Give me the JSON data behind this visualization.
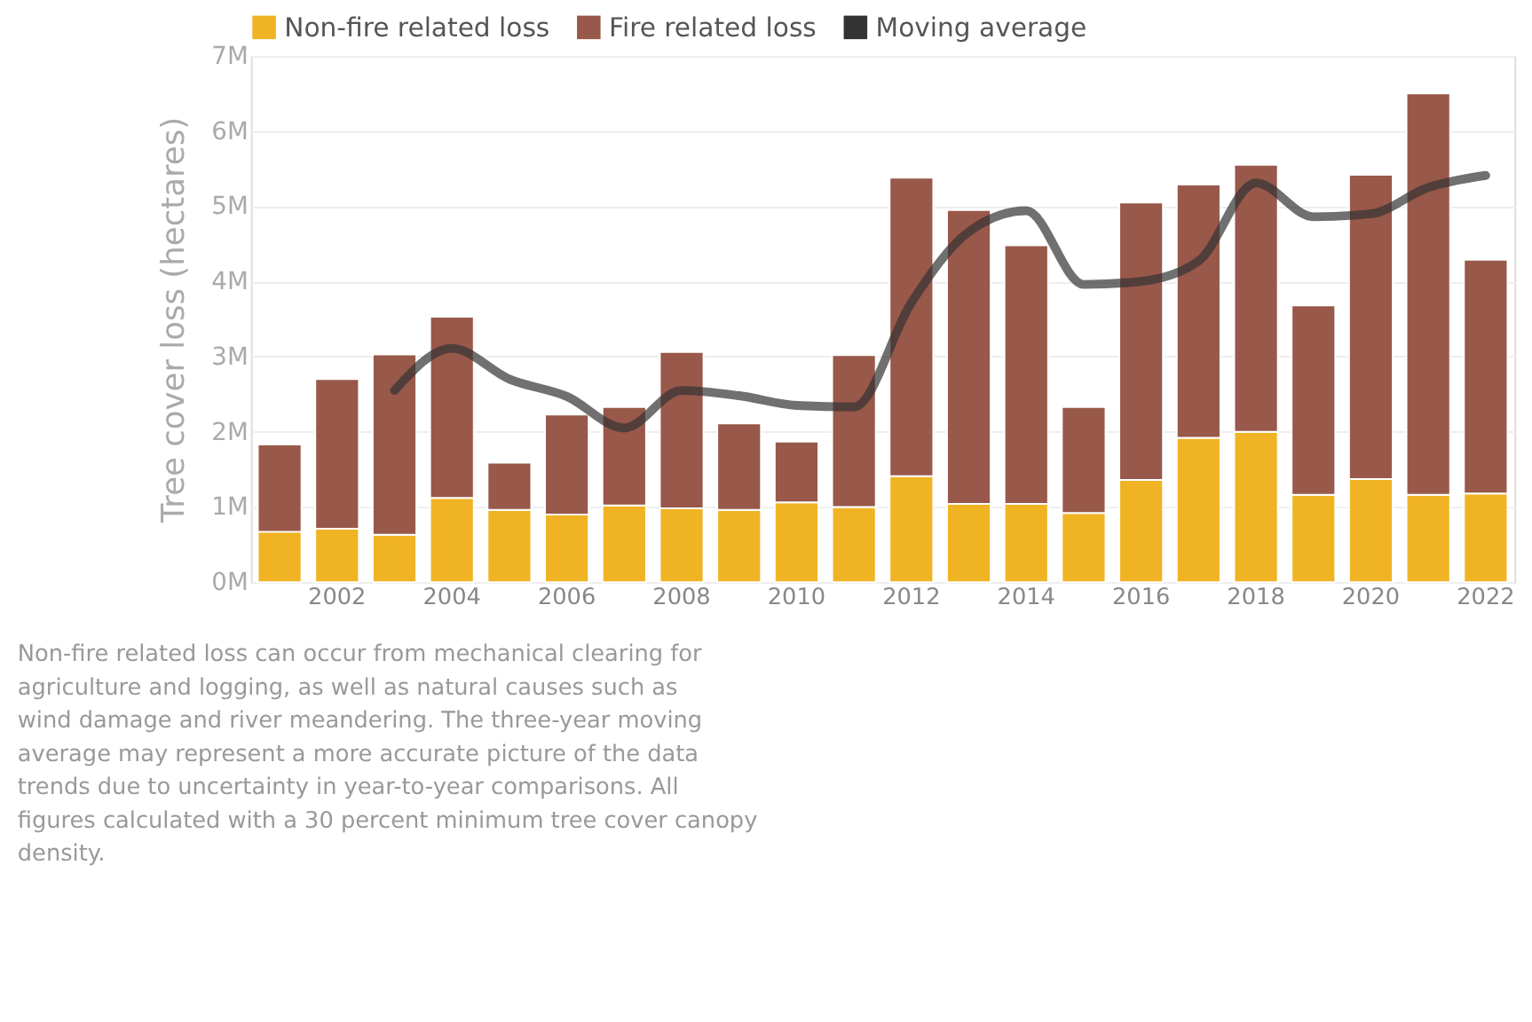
{
  "chart_data": {
    "type": "bar",
    "stacked": true,
    "ylabel": "Tree cover loss (hectares)",
    "categories": [
      null,
      "2002",
      null,
      "2004",
      null,
      "2006",
      null,
      "2008",
      null,
      "2010",
      null,
      "2012",
      null,
      "2014",
      null,
      "2016",
      null,
      "2018",
      null,
      "2020",
      null,
      "2022"
    ],
    "ylim": [
      0,
      7
    ],
    "yticks": [
      {
        "value": 0,
        "label": "0M"
      },
      {
        "value": 1,
        "label": "1M"
      },
      {
        "value": 2,
        "label": "2M"
      },
      {
        "value": 3,
        "label": "3M"
      },
      {
        "value": 4,
        "label": "4M"
      },
      {
        "value": 5,
        "label": "5M"
      },
      {
        "value": 6,
        "label": "6M"
      },
      {
        "value": 7,
        "label": "7M"
      }
    ],
    "grid": "y",
    "legend": "top left",
    "series": [
      {
        "name": "Non-fire related loss",
        "color": "#f0b323",
        "values": [
          0.67,
          0.71,
          0.63,
          1.12,
          0.96,
          0.9,
          1.02,
          0.98,
          0.96,
          1.06,
          1.0,
          1.41,
          1.04,
          1.04,
          0.92,
          1.36,
          1.92,
          2.0,
          1.16,
          1.37,
          1.16,
          1.18
        ]
      },
      {
        "name": "Fire related loss",
        "color": "#98584a",
        "values": [
          1.16,
          1.99,
          2.4,
          2.41,
          0.63,
          1.33,
          1.31,
          2.08,
          1.15,
          0.81,
          2.02,
          3.97,
          3.91,
          3.44,
          1.41,
          3.69,
          3.37,
          3.55,
          2.52,
          4.05,
          5.34,
          3.11
        ]
      },
      {
        "name": "Moving average",
        "type": "line",
        "color": "#333333",
        "values": [
          null,
          null,
          2.55,
          3.11,
          2.7,
          2.47,
          2.05,
          2.55,
          2.48,
          2.35,
          2.33,
          3.72,
          4.66,
          4.94,
          3.96,
          4.0,
          4.27,
          5.31,
          4.86,
          4.9,
          5.25,
          5.41
        ]
      }
    ],
    "annotations": [
      "Non-fire related loss can occur from mechanical clearing for agriculture and logging, as well as natural causes such as wind damage and river meandering. The three-year moving average may represent a more accurate picture of the data trends due to uncertainty in year-to-year comparisons. All figures calculated with a 30 percent minimum tree cover canopy density."
    ]
  }
}
